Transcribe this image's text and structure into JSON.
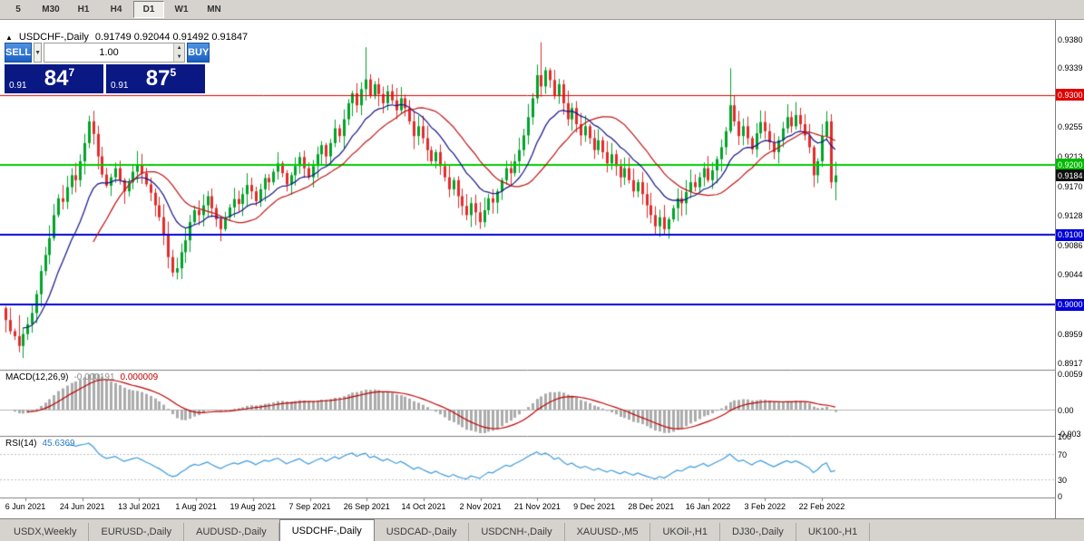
{
  "toolbar": {
    "periods": [
      {
        "label": "5",
        "active": false
      },
      {
        "label": "M30",
        "active": false
      },
      {
        "label": "H1",
        "active": false
      },
      {
        "label": "H4",
        "active": false
      },
      {
        "label": "D1",
        "active": true
      },
      {
        "label": "W1",
        "active": false
      },
      {
        "label": "MN",
        "active": false
      }
    ]
  },
  "chart_header": {
    "marker": "▲",
    "title": "USDCHF-,Daily",
    "ohlc": "0.91749 0.92044 0.91492 0.91847"
  },
  "trade_panel": {
    "sell_label": "SELL",
    "buy_label": "BUY",
    "volume": "1.00",
    "sell_price": {
      "prefix": "0.91",
      "big": "84",
      "sup": "7"
    },
    "buy_price": {
      "prefix": "0.91",
      "big": "87",
      "sup": "5"
    }
  },
  "macd": {
    "name": "MACD(12,26,9)",
    "value_main": "-0.000191",
    "value_signal": "0.000009",
    "axis": [
      "0.0059",
      "0.00",
      "-0.003"
    ]
  },
  "rsi": {
    "name": "RSI(14)",
    "value": "45.6369",
    "axis": [
      "100",
      "70",
      "30",
      "0"
    ]
  },
  "price_axis": {
    "ticks": [
      "0.9380",
      "0.9339",
      "0.9297",
      "0.9255",
      "0.9213",
      "0.9170",
      "0.9128",
      "0.9086",
      "0.9044",
      "0.9002",
      "0.8959",
      "0.8917"
    ],
    "flags": [
      {
        "text": "0.9300",
        "price": 0.93,
        "color": "#E00000"
      },
      {
        "text": "0.9200",
        "price": 0.92,
        "color": "#00BB00"
      },
      {
        "text": "0.9184",
        "price": 0.91847,
        "color": "#101010"
      },
      {
        "text": "0.9100",
        "price": 0.91,
        "color": "#0000D8"
      },
      {
        "text": "0.9000",
        "price": 0.9,
        "color": "#0000D8"
      }
    ]
  },
  "tabs": [
    {
      "label": "USDX,Weekly",
      "active": false
    },
    {
      "label": "EURUSD-,Daily",
      "active": false
    },
    {
      "label": "AUDUSD-,Daily",
      "active": false
    },
    {
      "label": "USDCHF-,Daily",
      "active": true
    },
    {
      "label": "USDCAD-,Daily",
      "active": false
    },
    {
      "label": "USDCNH-,Daily",
      "active": false
    },
    {
      "label": "XAUUSD-,M5",
      "active": false
    },
    {
      "label": "UKOil-,H1",
      "active": false
    },
    {
      "label": "DJ30-,Daily",
      "active": false
    },
    {
      "label": "UK100-,H1",
      "active": false
    }
  ],
  "colors": {
    "trade_display_bg": "#0A1884",
    "button_blue_top": "#4F93E3",
    "button_blue_bottom": "#1A5FC4"
  },
  "chart_data": {
    "type": "candlestick",
    "symbol": "USDCHF-",
    "timeframe": "Daily",
    "ohlc_current": {
      "open": 0.91749,
      "high": 0.92044,
      "low": 0.91492,
      "close": 0.91847
    },
    "ylim": [
      0.8907,
      0.9407
    ],
    "dates": [
      "6 Jun 2021",
      "24 Jun 2021",
      "13 Jul 2021",
      "1 Aug 2021",
      "19 Aug 2021",
      "7 Sep 2021",
      "26 Sep 2021",
      "14 Oct 2021",
      "2 Nov 2021",
      "21 Nov 2021",
      "9 Dec 2021",
      "28 Dec 2021",
      "16 Jan 2022",
      "3 Feb 2022",
      "22 Feb 2022"
    ],
    "hlines": [
      {
        "price": 0.93,
        "color": "#E00000",
        "width": 1
      },
      {
        "price": 0.92,
        "color": "#00CC00",
        "width": 2
      },
      {
        "price": 0.91,
        "color": "#0000D8",
        "width": 2
      },
      {
        "price": 0.9,
        "color": "#0000D8",
        "width": 2
      }
    ],
    "open_first": 0.8995,
    "closes": [
      0.8978,
      0.8962,
      0.8955,
      0.8941,
      0.8958,
      0.8972,
      0.8988,
      0.9015,
      0.9048,
      0.9071,
      0.9095,
      0.9128,
      0.9152,
      0.9147,
      0.9168,
      0.9185,
      0.9178,
      0.9205,
      0.9231,
      0.9262,
      0.9244,
      0.9212,
      0.9186,
      0.917,
      0.9182,
      0.9195,
      0.9178,
      0.9162,
      0.9175,
      0.919,
      0.9201,
      0.9188,
      0.9172,
      0.916,
      0.9142,
      0.9125,
      0.9101,
      0.9068,
      0.9046,
      0.9052,
      0.9075,
      0.9092,
      0.9118,
      0.9135,
      0.9128,
      0.9142,
      0.9155,
      0.9138,
      0.9122,
      0.9108,
      0.9125,
      0.9139,
      0.9151,
      0.9144,
      0.9158,
      0.9171,
      0.9162,
      0.9148,
      0.9165,
      0.9181,
      0.9175,
      0.919,
      0.9202,
      0.9188,
      0.9172,
      0.9185,
      0.9198,
      0.9211,
      0.9195,
      0.9182,
      0.9198,
      0.9215,
      0.9228,
      0.9212,
      0.9231,
      0.9252,
      0.9241,
      0.9265,
      0.9288,
      0.9302,
      0.9285,
      0.9308,
      0.9322,
      0.9298,
      0.9315,
      0.9301,
      0.9288,
      0.9305,
      0.9292,
      0.9278,
      0.9295,
      0.9281,
      0.9262,
      0.9241,
      0.9255,
      0.9238,
      0.9221,
      0.9205,
      0.9218,
      0.9198,
      0.9182,
      0.9165,
      0.9178,
      0.9155,
      0.9141,
      0.9128,
      0.9145,
      0.9132,
      0.9118,
      0.9135,
      0.9152,
      0.9146,
      0.9162,
      0.9178,
      0.9195,
      0.9188,
      0.9205,
      0.9221,
      0.9242,
      0.9268,
      0.9295,
      0.9328,
      0.9312,
      0.9335,
      0.9321,
      0.9298,
      0.9315,
      0.9288,
      0.9265,
      0.9281,
      0.9258,
      0.9242,
      0.9255,
      0.9238,
      0.9221,
      0.9235,
      0.9218,
      0.9202,
      0.9215,
      0.9198,
      0.9182,
      0.9195,
      0.9178,
      0.9162,
      0.9175,
      0.9158,
      0.9142,
      0.9128,
      0.9112,
      0.9125,
      0.9108,
      0.9122,
      0.9138,
      0.9152,
      0.9145,
      0.9161,
      0.9175,
      0.9168,
      0.9182,
      0.9195,
      0.9178,
      0.9192,
      0.9208,
      0.9225,
      0.9248,
      0.9285,
      0.9262,
      0.9241,
      0.9255,
      0.9238,
      0.9222,
      0.9245,
      0.9261,
      0.9248,
      0.9232,
      0.9218,
      0.9235,
      0.9252,
      0.9268,
      0.9255,
      0.9271,
      0.9258,
      0.9242,
      0.9225,
      0.9185,
      0.9205,
      0.9241,
      0.9262,
      0.9175,
      0.91847
    ],
    "high_overrides": {
      "3": 0.8985,
      "82": 0.9368,
      "122": 0.9375,
      "165": 0.9338,
      "189": 0.92044
    },
    "low_overrides": {
      "3": 0.8932,
      "189": 0.91492
    },
    "colors": {
      "up": "#00A32A",
      "down": "#E22B2B",
      "ma_fast": "#14148C",
      "ma_slow": "#C01414",
      "macd_hist": "#ABABAB",
      "macd_signal": "#C00000",
      "rsi_line": "#3E9BDE"
    },
    "indicators": [
      {
        "name": "MACD",
        "params": "12,26,9",
        "main": -0.000191,
        "signal": 9e-06
      },
      {
        "name": "RSI",
        "params": "14",
        "value": 45.6369
      }
    ]
  }
}
